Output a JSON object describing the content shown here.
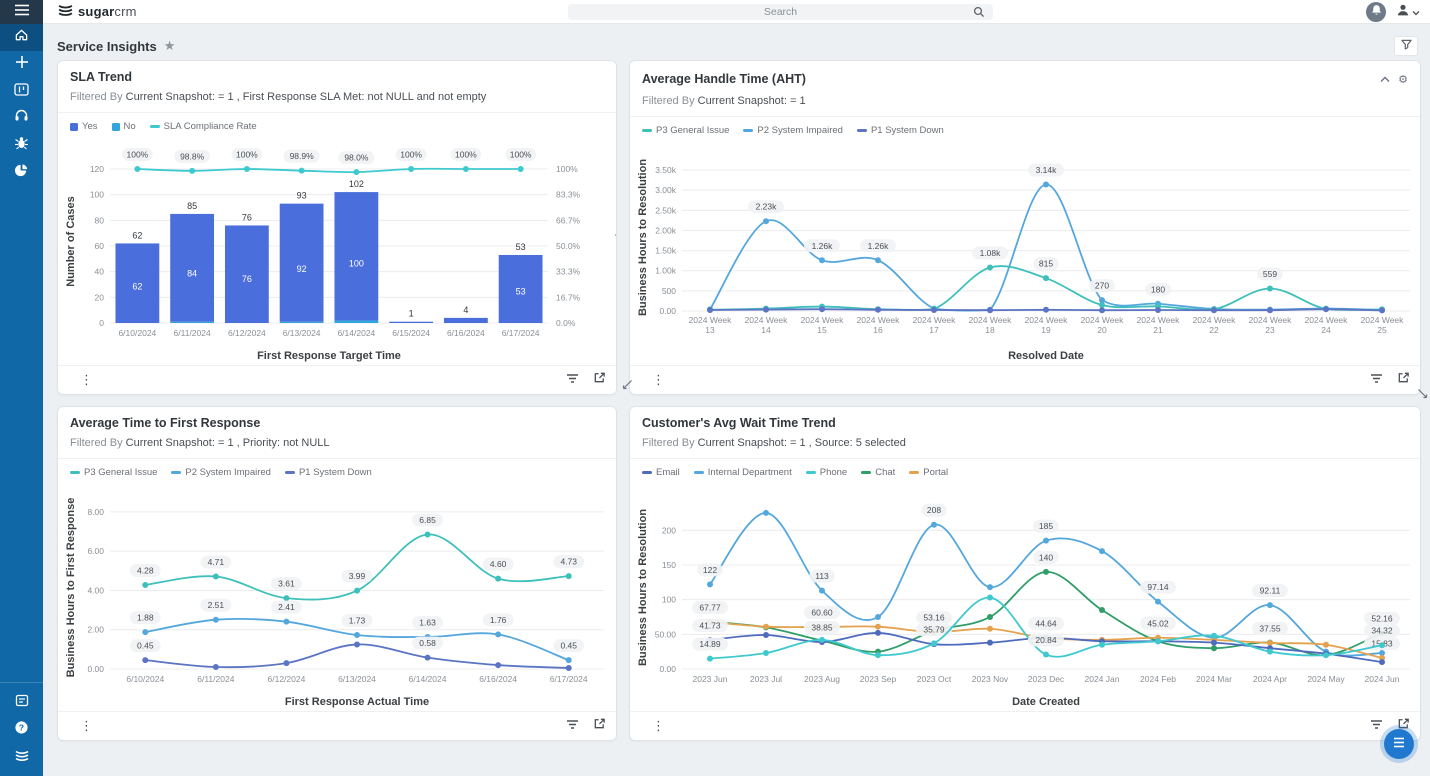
{
  "header": {
    "brand_bold": "sugar",
    "brand_light": "crm",
    "search_placeholder": "Search"
  },
  "sidebar": {
    "items": [
      "menu",
      "home",
      "create-new",
      "kanban-board",
      "service-console",
      "bug-tracker",
      "reports",
      "knowledge-base",
      "help",
      "sugar-apps"
    ]
  },
  "page": {
    "title": "Service Insights",
    "filtered_by_label": "Filtered By"
  },
  "footer_icons": [
    "more-actions",
    "filter",
    "open-in-new"
  ],
  "chart_data": [
    {
      "id": "sla-trend",
      "type": "bar",
      "title": "SLA Trend",
      "filters": "Current Snapshot: = 1 , First Response SLA Met: not NULL and not empty",
      "legend": [
        {
          "label": "Yes",
          "color": "#4a6edb",
          "shape": "square"
        },
        {
          "label": "No",
          "color": "#30a5e0",
          "shape": "square"
        },
        {
          "label": "SLA Compliance Rate",
          "color": "#3ec9cf",
          "shape": "dash"
        }
      ],
      "categories": [
        "6/10/2024",
        "6/11/2024",
        "6/12/2024",
        "6/13/2024",
        "6/14/2024",
        "6/15/2024",
        "6/16/2024",
        "6/17/2024"
      ],
      "bar_series": [
        {
          "name": "No",
          "color": "#30a5e0",
          "values": [
            0,
            1,
            0,
            1,
            2,
            0,
            0,
            0
          ]
        },
        {
          "name": "Yes",
          "color": "#4a6edb",
          "inside": true,
          "values": [
            62,
            84,
            76,
            92,
            100,
            1,
            4,
            53
          ]
        }
      ],
      "totals": [
        "62",
        "85",
        "76",
        "93",
        "102",
        "1",
        "4",
        "53"
      ],
      "series": [
        {
          "name": "SLA Compliance Rate",
          "color": "#3ec9cf",
          "value_scale": 1.2,
          "values": [
            100,
            98.8,
            100,
            98.9,
            98.0,
            100,
            100,
            100
          ],
          "labels": [
            "100%",
            "98.8%",
            "100%",
            "98.9%",
            "98.0%",
            "100%",
            "100%",
            "100%"
          ]
        }
      ],
      "xlabel": "First Response Target Time",
      "ylabel": "Number of Cases",
      "ylabel_right": "SLA Compliance Rate",
      "ylim": [
        0,
        127
      ],
      "yticks": [
        {
          "v": 0,
          "label": "0"
        },
        {
          "v": 20,
          "label": "20"
        },
        {
          "v": 40,
          "label": "40"
        },
        {
          "v": 60,
          "label": "60"
        },
        {
          "v": 80,
          "label": "80"
        },
        {
          "v": 100,
          "label": "100"
        },
        {
          "v": 120,
          "label": "120"
        }
      ],
      "right_ticks": [
        "0.0%",
        "16.7%",
        "33.3%",
        "50.0%",
        "66.7%",
        "83.3%",
        "100%"
      ],
      "margins": {
        "l": 46,
        "r": 74,
        "wrap": false
      }
    },
    {
      "id": "average-handle-time",
      "type": "line",
      "title": "Average Handle Time (AHT)",
      "filters": "Current Snapshot: = 1",
      "legend": [
        {
          "label": "P3 General Issue",
          "color": "#3ec0ba",
          "shape": "dash"
        },
        {
          "label": "P2 System Impaired",
          "color": "#54a7dd",
          "shape": "dash"
        },
        {
          "label": "P1 System Down",
          "color": "#5b74c4",
          "shape": "dash"
        }
      ],
      "categories": [
        "2024 Week 13",
        "2024 Week 14",
        "2024 Week 15",
        "2024 Week 16",
        "2024 Week 17",
        "2024 Week 18",
        "2024 Week 19",
        "2024 Week 20",
        "2024 Week 21",
        "2024 Week 22",
        "2024 Week 23",
        "2024 Week 24",
        "2024 Week 25"
      ],
      "series": [
        {
          "name": "P2 System Impaired",
          "color": "#54a7dd",
          "values": [
            40,
            2230,
            1260,
            1260,
            60,
            30,
            3140,
            270,
            180,
            50,
            35,
            60,
            25
          ],
          "labels": [
            null,
            "2.23k",
            "1.26k",
            "1.26k",
            null,
            null,
            "3.14k",
            "270",
            "180",
            null,
            null,
            null,
            null
          ]
        },
        {
          "name": "P3 General Issue",
          "color": "#3ec0ba",
          "values": [
            30,
            60,
            110,
            45,
            50,
            1080,
            815,
            150,
            115,
            45,
            559,
            50,
            40
          ],
          "labels": [
            null,
            null,
            null,
            null,
            null,
            "1.08k",
            "815",
            null,
            null,
            null,
            "559",
            null,
            null
          ]
        },
        {
          "name": "P1 System Down",
          "color": "#5b74c4",
          "values": [
            25,
            35,
            45,
            30,
            25,
            20,
            30,
            20,
            25,
            20,
            20,
            45,
            15
          ],
          "labels": [
            null,
            null,
            null,
            null,
            null,
            null,
            null,
            null,
            null,
            null,
            null,
            null,
            null
          ]
        }
      ],
      "xlabel": "Resolved Date",
      "ylabel": "Business Hours to Resolution",
      "ylim": [
        0,
        3650
      ],
      "yticks": [
        {
          "v": 0,
          "label": "0.00"
        },
        {
          "v": 500,
          "label": "500"
        },
        {
          "v": 1000,
          "label": "1.00k"
        },
        {
          "v": 1500,
          "label": "1.50k"
        },
        {
          "v": 2000,
          "label": "2.00k"
        },
        {
          "v": 2500,
          "label": "2.50k"
        },
        {
          "v": 3000,
          "label": "3.00k"
        },
        {
          "v": 3500,
          "label": "3.50k"
        }
      ],
      "margins": {
        "l": 46,
        "r": 16,
        "wrap": true
      }
    },
    {
      "id": "average-time-to-first-response",
      "type": "line",
      "title": "Average Time to First Response",
      "filters": "Current Snapshot: = 1 , Priority: not NULL",
      "legend": [
        {
          "label": "P3 General Issue",
          "color": "#3ec0ba",
          "shape": "dash"
        },
        {
          "label": "P2 System Impaired",
          "color": "#54a7dd",
          "shape": "dash"
        },
        {
          "label": "P1 System Down",
          "color": "#5b74c4",
          "shape": "dash"
        }
      ],
      "categories": [
        "6/10/2024",
        "6/11/2024",
        "6/12/2024",
        "6/13/2024",
        "6/14/2024",
        "6/16/2024",
        "6/17/2024"
      ],
      "series": [
        {
          "name": "P3 General Issue",
          "color": "#3ec0ba",
          "values": [
            4.28,
            4.71,
            3.61,
            3.99,
            6.85,
            4.6,
            4.73
          ],
          "labels": [
            "4.28",
            "4.71",
            "3.61",
            "3.99",
            "6.85",
            "4.60",
            "4.73"
          ]
        },
        {
          "name": "P2 System Impaired",
          "color": "#54a7dd",
          "values": [
            1.88,
            2.51,
            2.41,
            1.73,
            1.63,
            1.76,
            0.45
          ],
          "labels": [
            "1.88",
            "2.51",
            "2.41",
            "1.73",
            "1.63",
            "1.76",
            "0.45"
          ]
        },
        {
          "name": "P1 System Down",
          "color": "#5b74c4",
          "values": [
            0.45,
            0.1,
            0.3,
            1.25,
            0.58,
            0.2,
            0.05
          ],
          "labels": [
            "0.45",
            null,
            null,
            null,
            "0.58",
            null,
            null
          ]
        }
      ],
      "xlabel": "First Response Actual Time",
      "ylabel": "Business Hours to First Response",
      "ylim": [
        0,
        8.3
      ],
      "yticks": [
        {
          "v": 0,
          "label": "0.00"
        },
        {
          "v": 2,
          "label": "2.00"
        },
        {
          "v": 4,
          "label": "4.00"
        },
        {
          "v": 6,
          "label": "6.00"
        },
        {
          "v": 8,
          "label": "8.00"
        }
      ],
      "margins": {
        "l": 46,
        "r": 18,
        "wrap": false
      }
    },
    {
      "id": "customers-avg-wait-time-trend",
      "type": "line",
      "title": "Customer's Avg Wait Time Trend",
      "filters": "Current Snapshot: = 1 , Source: 5 selected",
      "legend": [
        {
          "label": "Email",
          "color": "#4f6bbd",
          "shape": "dash"
        },
        {
          "label": "Internal Department",
          "color": "#54a7dd",
          "shape": "dash"
        },
        {
          "label": "Phone",
          "color": "#3ec9cf",
          "shape": "dash"
        },
        {
          "label": "Chat",
          "color": "#2f9e68",
          "shape": "dash"
        },
        {
          "label": "Portal",
          "color": "#e4a24e",
          "shape": "dash"
        }
      ],
      "categories": [
        "2023 Jun",
        "2023 Jul",
        "2023 Aug",
        "2023 Sep",
        "2023 Oct",
        "2023 Nov",
        "2023 Dec",
        "2024 Jan",
        "2024 Feb",
        "2024 Mar",
        "2024 Apr",
        "2024 May",
        "2024 Jun"
      ],
      "series": [
        {
          "name": "Internal Department",
          "color": "#54a7dd",
          "values": [
            122,
            225,
            113,
            75,
            208,
            118,
            185,
            170,
            97.14,
            45,
            92.11,
            25,
            23
          ],
          "labels": [
            "122",
            null,
            "113",
            null,
            "208",
            null,
            "185",
            null,
            "97.14",
            null,
            "92.11",
            null,
            null
          ]
        },
        {
          "name": "Chat",
          "color": "#2f9e68",
          "values": [
            68,
            60,
            41,
            25,
            55,
            75,
            140,
            85,
            40,
            30,
            38,
            20,
            52.16
          ],
          "labels": [
            null,
            null,
            null,
            null,
            null,
            null,
            "140",
            null,
            null,
            null,
            null,
            null,
            "52.16"
          ]
        },
        {
          "name": "Portal",
          "color": "#e4a24e",
          "values": [
            67.77,
            61,
            60.6,
            61,
            53.16,
            58,
            44.64,
            42,
            45.02,
            42,
            37.55,
            35,
            15.83
          ],
          "labels": [
            "67.77",
            null,
            "60.60",
            null,
            "53.16",
            null,
            "44.64",
            null,
            "45.02",
            null,
            "37.55",
            null,
            "15.83"
          ]
        },
        {
          "name": "Email",
          "color": "#4f6bbd",
          "values": [
            41.73,
            49,
            38.85,
            52,
            35.79,
            38,
            45,
            40,
            40,
            38,
            30,
            22,
            10
          ],
          "labels": [
            "41.73",
            null,
            "38.85",
            null,
            "35.79",
            null,
            null,
            null,
            null,
            null,
            null,
            null,
            null
          ]
        },
        {
          "name": "Phone",
          "color": "#3ec9cf",
          "values": [
            14.89,
            23,
            42,
            20,
            37,
            103,
            20.84,
            35,
            40,
            48,
            25,
            20,
            34.32
          ],
          "labels": [
            "14.89",
            null,
            null,
            null,
            null,
            null,
            "20.84",
            null,
            null,
            null,
            null,
            null,
            "34.32"
          ]
        }
      ],
      "xlabel": "Date Created",
      "ylabel": "Business Hours to Resolution",
      "ylim": [
        0,
        235
      ],
      "yticks": [
        {
          "v": 0,
          "label": "0.00"
        },
        {
          "v": 50,
          "label": "50.00"
        },
        {
          "v": 100,
          "label": "100"
        },
        {
          "v": 150,
          "label": "150"
        },
        {
          "v": 200,
          "label": "200"
        }
      ],
      "margins": {
        "l": 46,
        "r": 16,
        "wrap": false
      }
    }
  ]
}
